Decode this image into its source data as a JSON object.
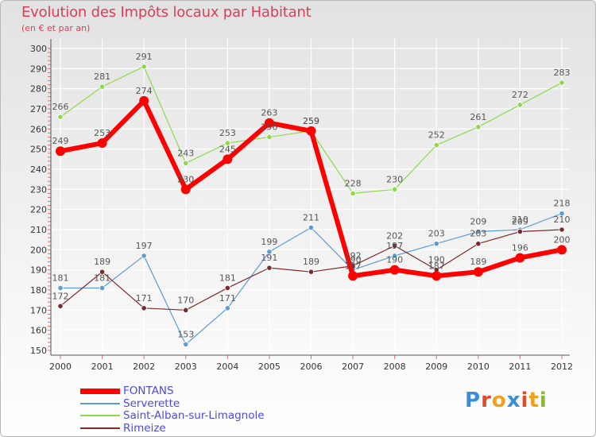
{
  "header": {
    "title": "Evolution des Impôts locaux par Habitant",
    "subtitle": "(en € et par an)"
  },
  "logo": {
    "letters": [
      "P",
      "r",
      "o",
      "x",
      "i",
      "t",
      "i"
    ],
    "colors": [
      "#3a8ed8",
      "#e24a2a",
      "#f0a020",
      "#3a8ed8",
      "#e24a2a",
      "#f0a020",
      "#88b82a"
    ]
  },
  "chart_data": {
    "type": "line",
    "title": "Evolution des Impôts locaux par Habitant",
    "subtitle": "(en € et par an)",
    "x": [
      "2000",
      "2001",
      "2002",
      "2003",
      "2004",
      "2005",
      "2006",
      "2007",
      "2008",
      "2009",
      "2010",
      "2011",
      "2012"
    ],
    "ylim": [
      150,
      300
    ],
    "yticks": [
      150,
      160,
      170,
      180,
      190,
      200,
      210,
      220,
      230,
      240,
      250,
      260,
      270,
      280,
      290,
      300
    ],
    "grid": true,
    "legend_position": "bottom-left",
    "series": [
      {
        "name": "FONTANS",
        "color": "#ff0000",
        "values": [
          249,
          253,
          274,
          230,
          245,
          263,
          259,
          187,
          190,
          187,
          189,
          196,
          200
        ],
        "labels": [
          "249",
          "253",
          "274",
          "230",
          "245",
          "263",
          "259",
          "187",
          "190",
          "187",
          "189",
          "196",
          "200"
        ]
      },
      {
        "name": "Serverette",
        "color": "#5e9bd0",
        "values": [
          181,
          181,
          197,
          153,
          171,
          199,
          211,
          190,
          197,
          203,
          209,
          210,
          218
        ],
        "labels": [
          "181",
          "181",
          "197",
          "153",
          "171",
          "199",
          "211",
          "190",
          "197",
          "203",
          "209",
          "210",
          "218"
        ]
      },
      {
        "name": "Saint-Alban-sur-Limagnole",
        "color": "#8fd84c",
        "values": [
          266,
          281,
          291,
          243,
          253,
          256,
          259,
          228,
          230,
          252,
          261,
          272,
          283
        ],
        "labels": [
          "266",
          "281",
          "291",
          "243",
          "253",
          "256",
          "259",
          "228",
          "230",
          "252",
          "261",
          "272",
          "283"
        ]
      },
      {
        "name": "Rimeize",
        "color": "#7a2a2a",
        "values": [
          172,
          189,
          171,
          170,
          181,
          191,
          189,
          192,
          202,
          190,
          203,
          209,
          210
        ],
        "labels": [
          "172",
          "189",
          "171",
          "170",
          "181",
          "191",
          "189",
          "192",
          "202",
          "190",
          "203",
          "209",
          "210"
        ]
      }
    ]
  }
}
